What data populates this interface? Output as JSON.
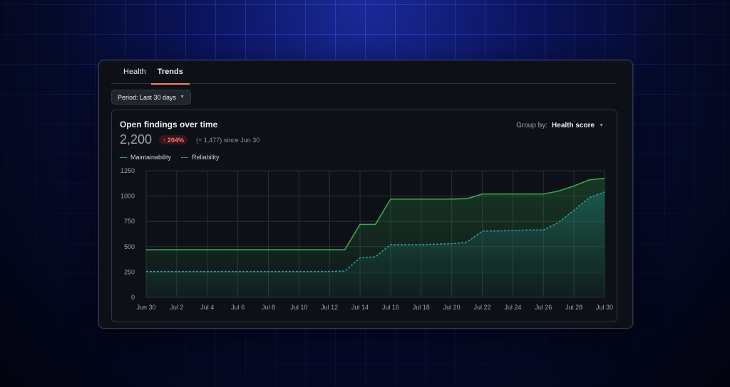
{
  "tabs": [
    {
      "label": "Health",
      "active": false
    },
    {
      "label": "Trends",
      "active": true
    }
  ],
  "period": {
    "label": "Period: Last 30 days",
    "caret_icon": "chevron-down-icon"
  },
  "panel": {
    "title": "Open findings over time",
    "total": "2,200",
    "badge": "↑ 204%",
    "since": "(+ 1,477) since Jun 30",
    "group_by_prefix": "Group by:",
    "group_by_value": "Health score"
  },
  "colors": {
    "accent_tab": "#f78166",
    "maintainability": "#3fa34d",
    "reliability": "#2a9a9a",
    "badge_bg": "#3a1418",
    "badge_text": "#ff7b72"
  },
  "chart_data": {
    "type": "area",
    "title": "Open findings over time",
    "ylim": [
      0,
      1250
    ],
    "yticks": [
      0,
      250,
      500,
      750,
      1000,
      1250
    ],
    "xticks": [
      "Jun 30",
      "Jul 2",
      "Jul 4",
      "Jul 6",
      "Jul 8",
      "Jul 10",
      "Jul 12",
      "Jul 14",
      "Jul 16",
      "Jul 18",
      "Jul 20",
      "Jul 22",
      "Jul 24",
      "Jul 26",
      "Jul 28",
      "Jul 30"
    ],
    "x": [
      "Jun 30",
      "Jul 1",
      "Jul 2",
      "Jul 3",
      "Jul 4",
      "Jul 5",
      "Jul 6",
      "Jul 7",
      "Jul 8",
      "Jul 9",
      "Jul 10",
      "Jul 11",
      "Jul 12",
      "Jul 13",
      "Jul 14",
      "Jul 15",
      "Jul 16",
      "Jul 17",
      "Jul 18",
      "Jul 19",
      "Jul 20",
      "Jul 21",
      "Jul 22",
      "Jul 23",
      "Jul 24",
      "Jul 25",
      "Jul 26",
      "Jul 27",
      "Jul 28",
      "Jul 29",
      "Jul 30"
    ],
    "grid": true,
    "legend_position": "top-left",
    "series": [
      {
        "name": "Maintainability",
        "style": "solid",
        "values": [
          470,
          470,
          470,
          470,
          470,
          470,
          470,
          470,
          470,
          470,
          470,
          470,
          470,
          470,
          720,
          720,
          970,
          970,
          970,
          970,
          970,
          975,
          1020,
          1020,
          1020,
          1020,
          1020,
          1050,
          1100,
          1160,
          1175
        ]
      },
      {
        "name": "Reliability",
        "style": "dashed",
        "values": [
          255,
          255,
          255,
          255,
          255,
          255,
          255,
          255,
          255,
          255,
          255,
          255,
          255,
          260,
          390,
          400,
          520,
          520,
          520,
          525,
          530,
          545,
          655,
          655,
          660,
          665,
          665,
          740,
          860,
          985,
          1040
        ]
      }
    ]
  }
}
